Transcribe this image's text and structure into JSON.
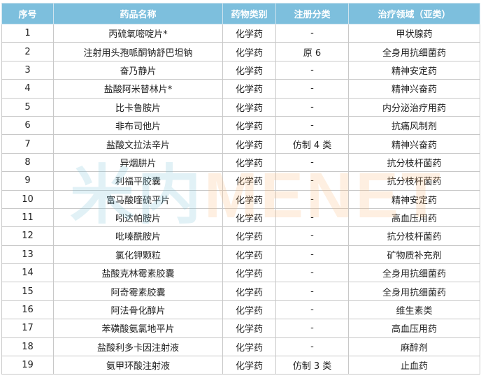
{
  "watermark": {
    "logo_cn": "米内",
    "logo_en": "MENET"
  },
  "headers": [
    "序号",
    "药品名称",
    "药物类别",
    "注册分类",
    "治疗领域（亚类）"
  ],
  "rows": [
    [
      "1",
      "丙硫氧嘧啶片*",
      "化学药",
      "-",
      "甲状腺药"
    ],
    [
      "2",
      "注射用头孢哌酮钠舒巴坦钠",
      "化学药",
      "原 6",
      "全身用抗细菌药"
    ],
    [
      "3",
      "奋乃静片",
      "化学药",
      "-",
      "精神安定药"
    ],
    [
      "4",
      "盐酸阿米替林片*",
      "化学药",
      "-",
      "精神兴奋药"
    ],
    [
      "5",
      "比卡鲁胺片",
      "化学药",
      "-",
      "内分泌治疗用药"
    ],
    [
      "6",
      "非布司他片",
      "化学药",
      "-",
      "抗痛风制剂"
    ],
    [
      "7",
      "盐酸文拉法辛片",
      "化学药",
      "仿制 4 类",
      "精神兴奋药"
    ],
    [
      "8",
      "异烟肼片",
      "化学药",
      "-",
      "抗分枝杆菌药"
    ],
    [
      "9",
      "利福平胶囊",
      "化学药",
      "-",
      "抗分枝杆菌药"
    ],
    [
      "10",
      "富马酸喹硫平片",
      "化学药",
      "-",
      "精神安定药"
    ],
    [
      "11",
      "吲达帕胺片",
      "化学药",
      "-",
      "高血压用药"
    ],
    [
      "12",
      "吡嗪酰胺片",
      "化学药",
      "-",
      "抗分枝杆菌药"
    ],
    [
      "13",
      "氯化钾颗粒",
      "化学药",
      "-",
      "矿物质补充剂"
    ],
    [
      "14",
      "盐酸克林霉素胶囊",
      "化学药",
      "-",
      "全身用抗细菌药"
    ],
    [
      "15",
      "阿奇霉素胶囊",
      "化学药",
      "-",
      "全身用抗细菌药"
    ],
    [
      "16",
      "阿法骨化醇片",
      "化学药",
      "-",
      "维生素类"
    ],
    [
      "17",
      "苯磺酸氨氯地平片",
      "化学药",
      "-",
      "高血压用药"
    ],
    [
      "18",
      "盐酸利多卡因注射液",
      "化学药",
      "-",
      "麻醉剂"
    ],
    [
      "19",
      "氨甲环酸注射液",
      "化学药",
      "仿制 3 类",
      "止血药"
    ]
  ]
}
